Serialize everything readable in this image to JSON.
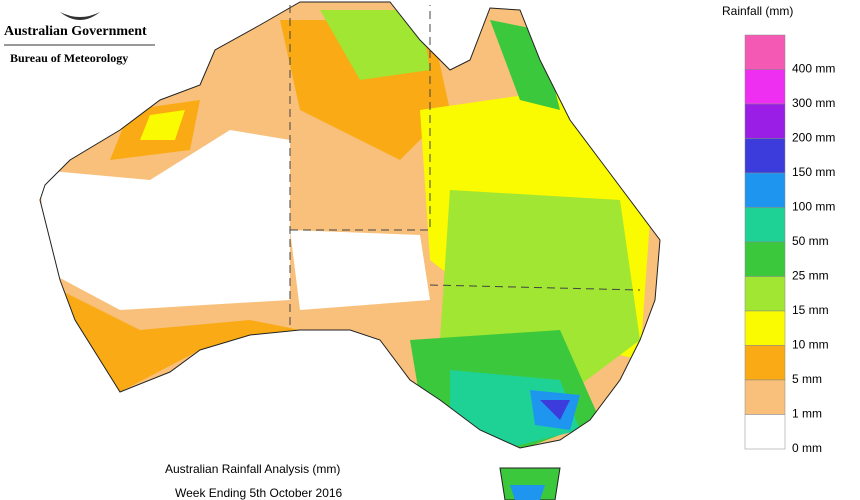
{
  "header": {
    "government": "Australian Government",
    "agency": "Bureau of Meteorology"
  },
  "legend": {
    "title": "Rainfall (mm)",
    "items": [
      {
        "label": "400 mm",
        "color": "#f45ab4"
      },
      {
        "label": "300 mm",
        "color": "#ee2ef0"
      },
      {
        "label": "200 mm",
        "color": "#9a1ee6"
      },
      {
        "label": "150 mm",
        "color": "#3c3cdc"
      },
      {
        "label": "100 mm",
        "color": "#1e96f0"
      },
      {
        "label": "50 mm",
        "color": "#1ed296"
      },
      {
        "label": "25 mm",
        "color": "#3cc83c"
      },
      {
        "label": "15 mm",
        "color": "#a0e632"
      },
      {
        "label": "10 mm",
        "color": "#fafa00"
      },
      {
        "label": "5 mm",
        "color": "#faaa14"
      },
      {
        "label": "1 mm",
        "color": "#f8c07a"
      },
      {
        "label": "0 mm",
        "color": "#ffffff"
      }
    ]
  },
  "footer": {
    "title": "Australian Rainfall Analysis (mm)",
    "subtitle": "Week Ending 5th October 2016"
  }
}
